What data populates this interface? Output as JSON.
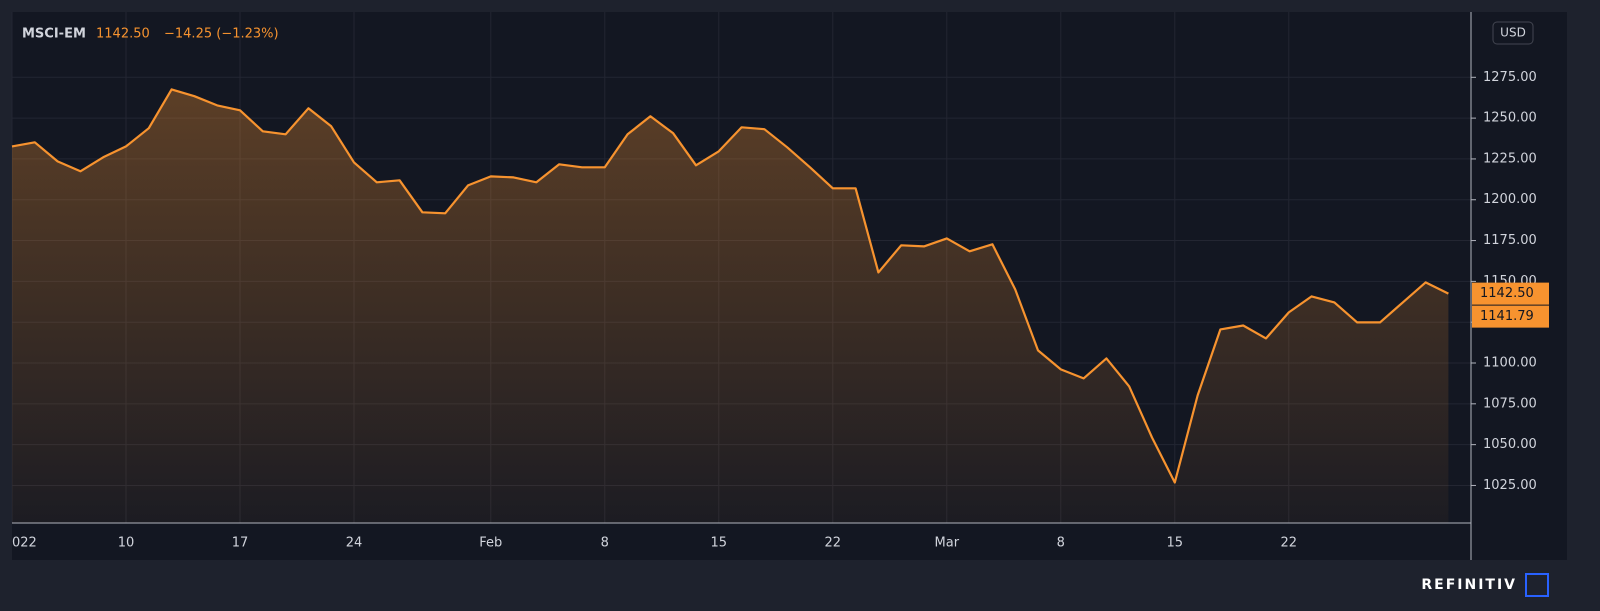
{
  "chart_data": {
    "type": "area",
    "symbol": "MSCI-EM",
    "last": "1142.50",
    "change": "−14.25 (−1.23%)",
    "currency": "USD",
    "brand": "REFINITIV",
    "categories": [
      "022",
      null,
      null,
      null,
      null,
      "10",
      null,
      null,
      null,
      null,
      "17",
      null,
      null,
      null,
      null,
      "24",
      null,
      null,
      null,
      null,
      null,
      "Feb",
      null,
      null,
      null,
      null,
      "8",
      null,
      null,
      null,
      null,
      "15",
      null,
      null,
      null,
      null,
      "22",
      null,
      null,
      null,
      null,
      "Mar",
      null,
      null,
      null,
      null,
      "8",
      null,
      null,
      null,
      null,
      "15",
      null,
      null,
      null,
      null,
      "22",
      null,
      null,
      null,
      null,
      null,
      null,
      null
    ],
    "series": [
      {
        "name": "MSCI-EM",
        "color": "#f7932f",
        "values": [
          1232.7,
          1235.2,
          1223.5,
          1217.4,
          1226,
          1232.7,
          1243.8,
          1267.6,
          1263.4,
          1257.8,
          1254.8,
          1241.9,
          1240.1,
          1256,
          1245,
          1222.9,
          1210.7,
          1211.9,
          1192.3,
          1191.7,
          1208.8,
          1214.3,
          1213.7,
          1210.7,
          1221.7,
          1219.9,
          1219.9,
          1240.1,
          1251.1,
          1240.7,
          1221.1,
          1229.7,
          1244.4,
          1243.2,
          1232.1,
          1219.9,
          1207,
          1207,
          1155.5,
          1172.1,
          1171.4,
          1176.3,
          1168.4,
          1172.7,
          1145.1,
          1107.7,
          1096.1,
          1090.6,
          1102.8,
          1085.7,
          1054.4,
          1026.8,
          1080.1,
          1120.6,
          1123,
          1115.1,
          1131,
          1140.8,
          1137.1,
          1124.9,
          1124.9,
          1137.1,
          1149.4,
          1142.5
        ]
      }
    ],
    "markers": [
      {
        "value": 1142.5,
        "label": "1142.50"
      },
      {
        "value": 1141.79,
        "label": "1141.79"
      }
    ],
    "ylim": [
      1002,
      1315
    ],
    "yticks": [
      {
        "value": 1025,
        "label": "1025.00"
      },
      {
        "value": 1050,
        "label": "1050.00"
      },
      {
        "value": 1075,
        "label": "1075.00"
      },
      {
        "value": 1100,
        "label": "1100.00"
      },
      {
        "value": 1125,
        "label": "1125.00"
      },
      {
        "value": 1150,
        "label": "1150.00"
      },
      {
        "value": 1175,
        "label": "1175.00"
      },
      {
        "value": 1200,
        "label": "1200.00"
      },
      {
        "value": 1225,
        "label": "1225.00"
      },
      {
        "value": 1250,
        "label": "1250.00"
      },
      {
        "value": 1275,
        "label": "1275.00"
      }
    ],
    "grid": true
  }
}
